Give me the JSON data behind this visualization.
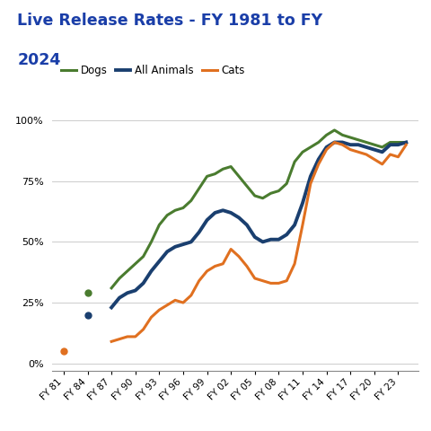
{
  "title_line1": "Live Release Rates - FY 1981 to FY",
  "title_line2": "2024",
  "title_color": "#1a3ea8",
  "bg_color": "#ffffff",
  "grid_color": "#cccccc",
  "dogs": {
    "dot_x": [
      1984
    ],
    "dot_y": [
      0.29
    ],
    "series_x": [
      1987,
      1988,
      1989,
      1990,
      1991,
      1992,
      1993,
      1994,
      1995,
      1996,
      1997,
      1998,
      1999,
      2000,
      2001,
      2002,
      2003,
      2004,
      2005,
      2006,
      2007,
      2008,
      2009,
      2010,
      2011,
      2012,
      2013,
      2014,
      2015,
      2016,
      2017,
      2018,
      2019,
      2020,
      2021,
      2022,
      2023,
      2024
    ],
    "series_y": [
      0.31,
      0.35,
      0.38,
      0.41,
      0.44,
      0.5,
      0.57,
      0.61,
      0.63,
      0.64,
      0.67,
      0.72,
      0.77,
      0.78,
      0.8,
      0.81,
      0.77,
      0.73,
      0.69,
      0.68,
      0.7,
      0.71,
      0.74,
      0.83,
      0.87,
      0.89,
      0.91,
      0.94,
      0.96,
      0.94,
      0.93,
      0.92,
      0.91,
      0.9,
      0.89,
      0.91,
      0.91,
      0.91
    ],
    "color": "#4a7c2f",
    "label": "Dogs",
    "linewidth": 2.2
  },
  "all_animals": {
    "dot_x": [
      1984
    ],
    "dot_y": [
      0.2
    ],
    "series_x": [
      1987,
      1988,
      1989,
      1990,
      1991,
      1992,
      1993,
      1994,
      1995,
      1996,
      1997,
      1998,
      1999,
      2000,
      2001,
      2002,
      2003,
      2004,
      2005,
      2006,
      2007,
      2008,
      2009,
      2010,
      2011,
      2012,
      2013,
      2014,
      2015,
      2016,
      2017,
      2018,
      2019,
      2020,
      2021,
      2022,
      2023,
      2024
    ],
    "series_y": [
      0.23,
      0.27,
      0.29,
      0.3,
      0.33,
      0.38,
      0.42,
      0.46,
      0.48,
      0.49,
      0.5,
      0.54,
      0.59,
      0.62,
      0.63,
      0.62,
      0.6,
      0.57,
      0.52,
      0.5,
      0.51,
      0.51,
      0.53,
      0.57,
      0.66,
      0.77,
      0.84,
      0.89,
      0.91,
      0.91,
      0.9,
      0.9,
      0.89,
      0.88,
      0.87,
      0.9,
      0.9,
      0.91
    ],
    "color": "#1a3f6f",
    "label": "All Animals",
    "linewidth": 2.8
  },
  "cats": {
    "dot_x": [
      1981
    ],
    "dot_y": [
      0.05
    ],
    "series_x": [
      1987,
      1988,
      1989,
      1990,
      1991,
      1992,
      1993,
      1994,
      1995,
      1996,
      1997,
      1998,
      1999,
      2000,
      2001,
      2002,
      2003,
      2004,
      2005,
      2006,
      2007,
      2008,
      2009,
      2010,
      2011,
      2012,
      2013,
      2014,
      2015,
      2016,
      2017,
      2018,
      2019,
      2020,
      2021,
      2022,
      2023,
      2024
    ],
    "series_y": [
      0.09,
      0.1,
      0.11,
      0.11,
      0.14,
      0.19,
      0.22,
      0.24,
      0.26,
      0.25,
      0.28,
      0.34,
      0.38,
      0.4,
      0.41,
      0.47,
      0.44,
      0.4,
      0.35,
      0.34,
      0.33,
      0.33,
      0.34,
      0.41,
      0.57,
      0.74,
      0.82,
      0.88,
      0.91,
      0.9,
      0.88,
      0.87,
      0.86,
      0.84,
      0.82,
      0.86,
      0.85,
      0.9
    ],
    "color": "#e07020",
    "label": "Cats",
    "linewidth": 2.2
  },
  "xtick_years": [
    1981,
    1984,
    1987,
    1990,
    1993,
    1996,
    1999,
    2002,
    2005,
    2008,
    2011,
    2014,
    2017,
    2020,
    2023
  ],
  "yticks": [
    0.0,
    0.25,
    0.5,
    0.75,
    1.0
  ],
  "ylim": [
    -0.03,
    1.07
  ],
  "xlim": [
    1979.5,
    2025.5
  ]
}
